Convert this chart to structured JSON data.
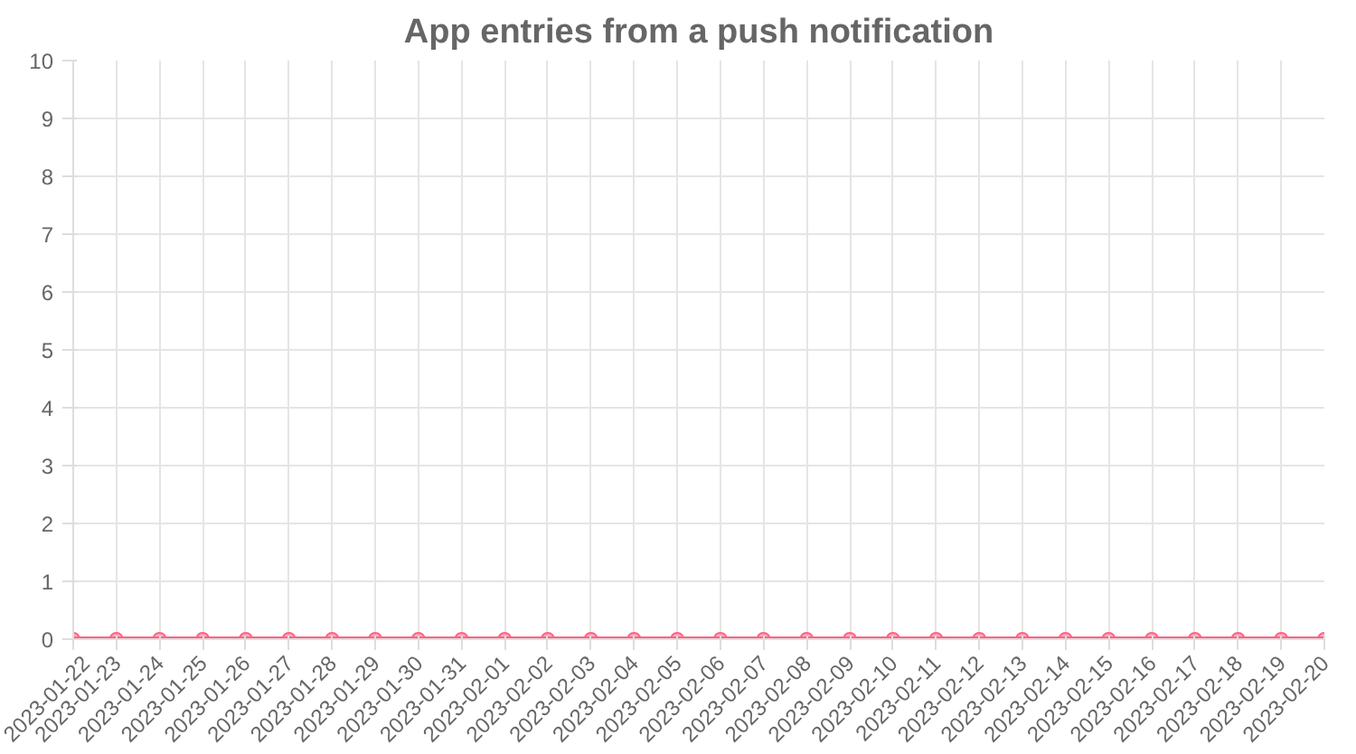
{
  "chart_data": {
    "type": "line",
    "title": "App entries from a push notification",
    "categories": [
      "2023-01-22",
      "2023-01-23",
      "2023-01-24",
      "2023-01-25",
      "2023-01-26",
      "2023-01-27",
      "2023-01-28",
      "2023-01-29",
      "2023-01-30",
      "2023-01-31",
      "2023-02-01",
      "2023-02-02",
      "2023-02-03",
      "2023-02-04",
      "2023-02-05",
      "2023-02-06",
      "2023-02-07",
      "2023-02-08",
      "2023-02-09",
      "2023-02-10",
      "2023-02-11",
      "2023-02-12",
      "2023-02-13",
      "2023-02-14",
      "2023-02-15",
      "2023-02-16",
      "2023-02-17",
      "2023-02-18",
      "2023-02-19",
      "2023-02-20"
    ],
    "series": [
      {
        "color": "#ff6384",
        "values": [
          0,
          0,
          0,
          0,
          0,
          0,
          0,
          0,
          0,
          0,
          0,
          0,
          0,
          0,
          0,
          0,
          0,
          0,
          0,
          0,
          0,
          0,
          0,
          0,
          0,
          0,
          0,
          0,
          0,
          0
        ]
      }
    ],
    "ylim": [
      0,
      10
    ],
    "yticks": [
      0,
      1,
      2,
      3,
      4,
      5,
      6,
      7,
      8,
      9,
      10
    ],
    "grid": true,
    "marker": "circle",
    "line_style": "solid"
  }
}
